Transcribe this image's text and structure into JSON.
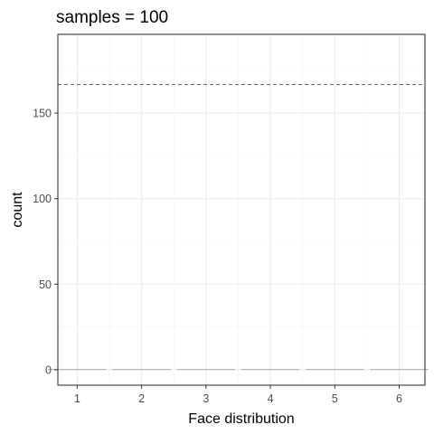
{
  "chart_data": {
    "type": "bar",
    "title": "samples = 100",
    "xlabel": "Face distribution",
    "ylabel": "count",
    "categories": [
      1,
      2,
      3,
      4,
      5,
      6
    ],
    "values": [
      0,
      0,
      0,
      0,
      0,
      0
    ],
    "xlim": [
      0.7,
      6.4
    ],
    "ylim": [
      -9,
      196
    ],
    "x_ticks": [
      1,
      2,
      3,
      4,
      5,
      6
    ],
    "y_ticks": [
      0,
      50,
      100,
      150
    ],
    "reference_line": {
      "y": 166.67,
      "style": "dashed",
      "color": "#e8234a"
    },
    "grid": true,
    "theme": "bw",
    "colors": {
      "grid_major": "#ebebeb",
      "grid_minor": "#f4f4f4",
      "border": "#333333"
    }
  }
}
